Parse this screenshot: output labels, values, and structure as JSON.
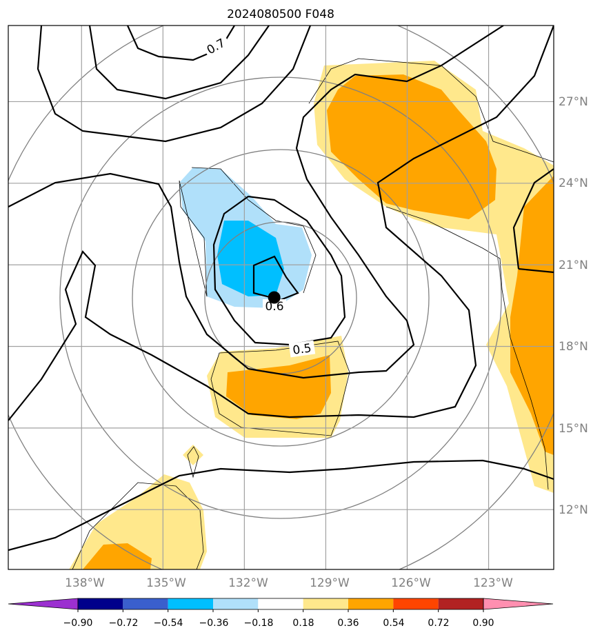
{
  "title": "2024080500 F048",
  "chart_data": {
    "type": "contour-map",
    "title": "2024080500 F048",
    "lon_ticks": [
      {
        "value": -138,
        "label": "138°W"
      },
      {
        "value": -135,
        "label": "135°W"
      },
      {
        "value": -132,
        "label": "132°W"
      },
      {
        "value": -129,
        "label": "129°W"
      },
      {
        "value": -126,
        "label": "126°W"
      },
      {
        "value": -123,
        "label": "123°W"
      }
    ],
    "lat_ticks": [
      {
        "value": 12,
        "label": "12°N"
      },
      {
        "value": 15,
        "label": "15°N"
      },
      {
        "value": 18,
        "label": "18°N"
      },
      {
        "value": 21,
        "label": "21°N"
      },
      {
        "value": 24,
        "label": "24°N"
      },
      {
        "value": 27,
        "label": "27°N"
      }
    ],
    "xlim": [
      -140.7,
      -120.6
    ],
    "ylim": [
      9.8,
      29.8
    ],
    "grid": true,
    "center": {
      "lon": -130.9,
      "lat": 19.8
    },
    "contour_labels": [
      "0.7",
      "0.6",
      "0.5"
    ],
    "colorbar": {
      "levels": [
        "−0.90",
        "−0.72",
        "−0.54",
        "−0.36",
        "−0.18",
        "0.18",
        "0.36",
        "0.54",
        "0.72",
        "0.90"
      ],
      "colors": [
        "#9b30d0",
        "#00008b",
        "#3a5fcd",
        "#00bfff",
        "#b0e0fa",
        "#ffffff",
        "#ffe88c",
        "#ffa500",
        "#ff4500",
        "#b22222",
        "#ff8fb0"
      ]
    }
  }
}
